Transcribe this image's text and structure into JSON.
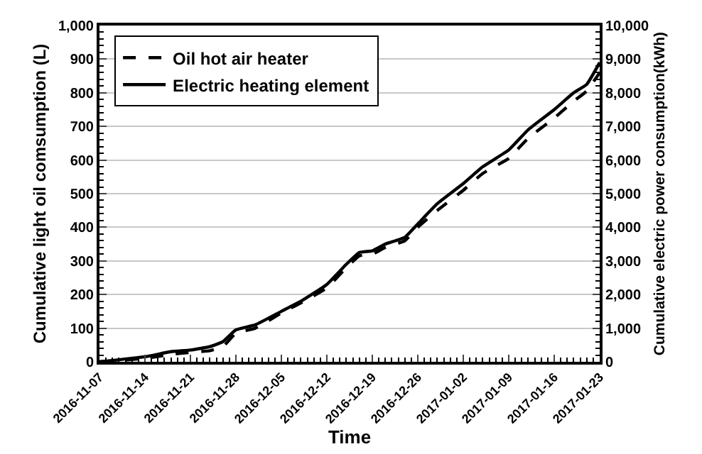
{
  "chart_data": {
    "type": "line",
    "xlabel": "Time",
    "ylabel": "Cumulative light oil comsumption (L)",
    "y2label": "Cumulative electric power consumption(kWh)",
    "x": [
      "2016-11-07",
      "2016-11-14",
      "2016-11-18",
      "2016-11-21",
      "2016-11-24",
      "2016-11-26",
      "2016-11-28",
      "2016-12-01",
      "2016-12-05",
      "2016-12-08",
      "2016-12-12",
      "2016-12-15",
      "2016-12-17",
      "2016-12-19",
      "2016-12-21",
      "2016-12-24",
      "2016-12-26",
      "2016-12-29",
      "2017-01-02",
      "2017-01-05",
      "2017-01-09",
      "2017-01-12",
      "2017-01-16",
      "2017-01-19",
      "2017-01-21",
      "2017-01-23"
    ],
    "series": [
      {
        "name": "Oil hot air heater",
        "color": "#000000",
        "line_style": "dashed",
        "values": [
          0,
          10,
          22,
          28,
          33,
          45,
          85,
          100,
          145,
          175,
          220,
          280,
          315,
          320,
          340,
          360,
          400,
          450,
          510,
          560,
          605,
          665,
          725,
          775,
          805,
          860
        ]
      },
      {
        "name": "Electric heating element",
        "color": "#000000",
        "line_style": "solid",
        "axis": "y2",
        "values": [
          0,
          150,
          300,
          350,
          450,
          600,
          950,
          1100,
          1500,
          1800,
          2300,
          2900,
          3250,
          3300,
          3500,
          3700,
          4100,
          4700,
          5300,
          5800,
          6300,
          6900,
          7500,
          8000,
          8250,
          8900
        ]
      }
    ],
    "xlim": [
      "2016-11-07",
      "2017-01-23"
    ],
    "xticks": [
      "2016-11-07",
      "2016-11-14",
      "2016-11-21",
      "2016-11-28",
      "2016-12-05",
      "2016-12-12",
      "2016-12-19",
      "2016-12-26",
      "2017-01-02",
      "2017-01-09",
      "2017-01-16",
      "2017-01-23"
    ],
    "ylim": [
      0,
      1000
    ],
    "yticks": [
      0,
      100,
      200,
      300,
      400,
      500,
      600,
      700,
      800,
      900,
      {
        "value": 1000,
        "label": "1,000"
      }
    ],
    "y2lim": [
      0,
      10000
    ],
    "y2ticks": [
      0,
      {
        "value": 1000,
        "label": "1,000"
      },
      {
        "value": 2000,
        "label": "2,000"
      },
      {
        "value": 3000,
        "label": "3,000"
      },
      {
        "value": 4000,
        "label": "4,000"
      },
      {
        "value": 5000,
        "label": "5,000"
      },
      {
        "value": 6000,
        "label": "6,000"
      },
      {
        "value": 7000,
        "label": "7,000"
      },
      {
        "value": 8000,
        "label": "8,000"
      },
      {
        "value": 9000,
        "label": "9,000"
      },
      {
        "value": 10000,
        "label": "10,000"
      }
    ],
    "grid": "y",
    "legend": "top left",
    "marker": "none"
  }
}
